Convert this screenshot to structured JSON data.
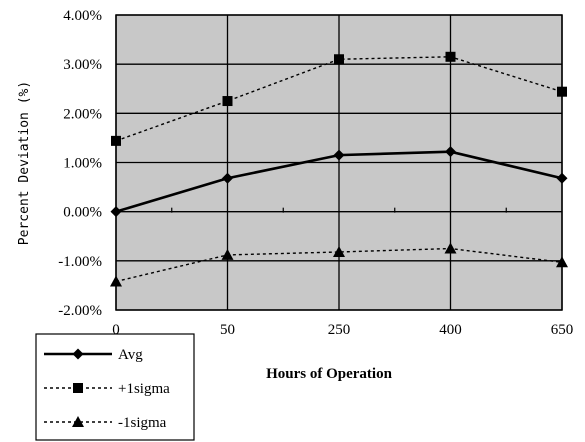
{
  "chart_data": {
    "type": "line",
    "categories": [
      "0",
      "50",
      "250",
      "400",
      "650"
    ],
    "xlabel": "Hours of Operation",
    "ylabel": "Percent Deviation (%)",
    "ylim": [
      -2,
      4
    ],
    "yticks": [
      "4.00%",
      "3.00%",
      "2.00%",
      "1.00%",
      "0.00%",
      "-1.00%",
      "-2.00%"
    ],
    "grid": true,
    "legend_position": "bottom-left",
    "series": [
      {
        "name": "Avg",
        "values": [
          0.0,
          0.68,
          1.15,
          1.22,
          0.68
        ],
        "marker": "diamond",
        "style": "solid"
      },
      {
        "name": "+1sigma",
        "values": [
          1.44,
          2.25,
          3.1,
          3.15,
          2.44
        ],
        "marker": "square",
        "style": "dashed"
      },
      {
        "name": "-1sigma",
        "values": [
          -1.42,
          -0.88,
          -0.82,
          -0.75,
          -1.03
        ],
        "marker": "triangle",
        "style": "dashed"
      }
    ]
  }
}
